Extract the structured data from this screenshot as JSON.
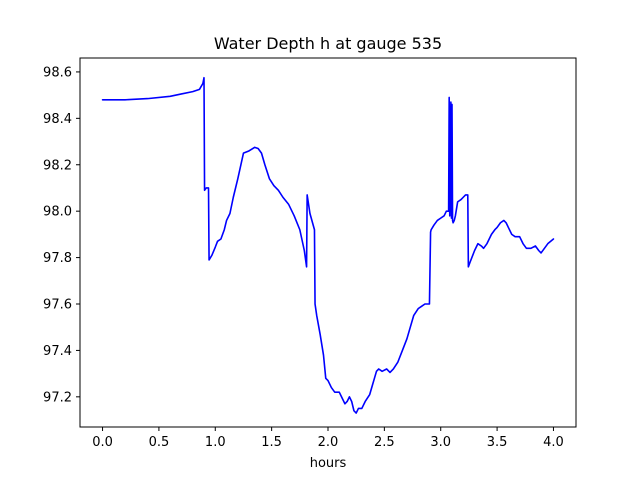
{
  "chart_data": {
    "type": "line",
    "title": "Water Depth h at gauge 535",
    "xlabel": "hours",
    "ylabel": "",
    "xlim": [
      -0.2,
      4.2
    ],
    "ylim": [
      97.07,
      98.66
    ],
    "xticks": [
      "0.0",
      "0.5",
      "1.0",
      "1.5",
      "2.0",
      "2.5",
      "3.0",
      "3.5",
      "4.0"
    ],
    "yticks": [
      "97.2",
      "97.4",
      "97.6",
      "97.8",
      "98.0",
      "98.2",
      "98.4",
      "98.6"
    ],
    "grid": false,
    "series": [
      {
        "color": "#0000ff",
        "x": [
          0.0,
          0.2,
          0.4,
          0.6,
          0.7,
          0.8,
          0.86,
          0.89,
          0.9,
          0.905,
          0.92,
          0.94,
          0.945,
          0.97,
          1.0,
          1.02,
          1.05,
          1.08,
          1.1,
          1.13,
          1.16,
          1.2,
          1.25,
          1.3,
          1.35,
          1.38,
          1.41,
          1.44,
          1.48,
          1.52,
          1.56,
          1.6,
          1.65,
          1.7,
          1.75,
          1.79,
          1.81,
          1.815,
          1.84,
          1.88,
          1.885,
          1.9,
          1.93,
          1.96,
          1.98,
          2.0,
          2.03,
          2.06,
          2.1,
          2.13,
          2.15,
          2.17,
          2.19,
          2.21,
          2.23,
          2.25,
          2.27,
          2.3,
          2.33,
          2.37,
          2.4,
          2.43,
          2.45,
          2.48,
          2.52,
          2.55,
          2.58,
          2.62,
          2.66,
          2.7,
          2.73,
          2.76,
          2.8,
          2.83,
          2.86,
          2.9,
          2.91,
          2.915,
          2.94,
          2.97,
          3.0,
          3.03,
          3.05,
          3.07,
          3.075,
          3.08,
          3.09,
          3.095,
          3.1,
          3.105,
          3.11,
          3.12,
          3.13,
          3.15,
          3.18,
          3.2,
          3.22,
          3.24,
          3.245,
          3.26,
          3.3,
          3.33,
          3.36,
          3.38,
          3.41,
          3.45,
          3.48,
          3.5,
          3.53,
          3.56,
          3.58,
          3.6,
          3.63,
          3.66,
          3.7,
          3.73,
          3.76,
          3.8,
          3.84,
          3.87,
          3.89,
          3.92,
          3.95,
          4.0
        ],
        "values": [
          98.48,
          98.48,
          98.485,
          98.495,
          98.505,
          98.515,
          98.525,
          98.55,
          98.575,
          98.09,
          98.1,
          98.1,
          97.79,
          97.81,
          97.845,
          97.87,
          97.88,
          97.92,
          97.96,
          97.99,
          98.06,
          98.14,
          98.25,
          98.26,
          98.275,
          98.27,
          98.25,
          98.2,
          98.14,
          98.11,
          98.09,
          98.06,
          98.03,
          97.98,
          97.92,
          97.83,
          97.76,
          98.07,
          97.99,
          97.92,
          97.6,
          97.55,
          97.47,
          97.38,
          97.28,
          97.27,
          97.24,
          97.22,
          97.22,
          97.19,
          97.17,
          97.18,
          97.2,
          97.18,
          97.14,
          97.13,
          97.15,
          97.15,
          97.18,
          97.21,
          97.26,
          97.31,
          97.32,
          97.31,
          97.32,
          97.305,
          97.32,
          97.35,
          97.4,
          97.45,
          97.5,
          97.55,
          97.58,
          97.59,
          97.6,
          97.6,
          97.91,
          97.92,
          97.94,
          97.96,
          97.97,
          97.98,
          98.0,
          98.0,
          98.49,
          97.98,
          98.47,
          97.97,
          98.46,
          97.96,
          97.95,
          97.96,
          97.98,
          98.04,
          98.05,
          98.06,
          98.07,
          98.07,
          97.76,
          97.78,
          97.83,
          97.86,
          97.85,
          97.84,
          97.86,
          97.9,
          97.92,
          97.93,
          97.95,
          97.96,
          97.95,
          97.93,
          97.9,
          97.89,
          97.89,
          97.86,
          97.84,
          97.84,
          97.85,
          97.83,
          97.82,
          97.84,
          97.86,
          97.88
        ]
      }
    ]
  }
}
